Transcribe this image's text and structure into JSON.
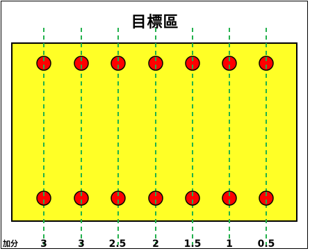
{
  "title": "目標區",
  "score_prefix": "加分",
  "columns": [
    {
      "score": "3"
    },
    {
      "score": "3"
    },
    {
      "score": "2.5"
    },
    {
      "score": "2"
    },
    {
      "score": "1.5"
    },
    {
      "score": "1"
    },
    {
      "score": "0.5"
    }
  ],
  "colors": {
    "target_fill": "#ffff26",
    "dot_fill": "#ff0000",
    "guide_line": "#22b14c"
  }
}
